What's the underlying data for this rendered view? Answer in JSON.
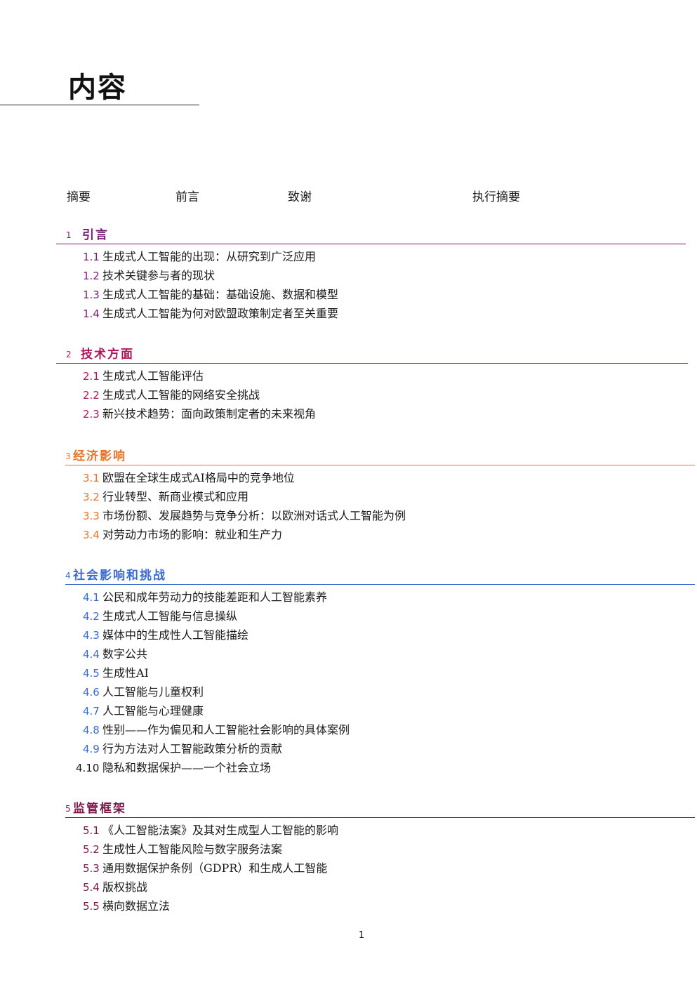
{
  "page": {
    "title": "内容",
    "page_number": "1"
  },
  "front_matter": [
    "摘要",
    "前言",
    "致谢",
    "执行摘要"
  ],
  "sections": [
    {
      "num": "1",
      "title": "引言",
      "color": "#7a1a73",
      "items": [
        {
          "num": "1.1",
          "text": "生成式人工智能的出现：从研究到广泛应用"
        },
        {
          "num": "1.2",
          "text": "技术关键参与者的现状"
        },
        {
          "num": "1.3",
          "text": "生成式人工智能的基础：基础设施、数据和模型"
        },
        {
          "num": "1.4",
          "text": "生成式人工智能为何对欧盟政策制定者至关重要"
        }
      ]
    },
    {
      "num": "2",
      "title": "技术方面",
      "color": "#b0155e",
      "items": [
        {
          "num": "2.1",
          "text": "生成式人工智能评估"
        },
        {
          "num": "2.2",
          "text": "生成式人工智能的网络安全挑战"
        },
        {
          "num": "2.3",
          "text": "新兴技术趋势：面向政策制定者的未来视角"
        }
      ]
    },
    {
      "num": "3",
      "title": "经济影响",
      "color": "#e8732a",
      "items": [
        {
          "num": "3.1",
          "text": "欧盟在全球生成式AI格局中的竞争地位"
        },
        {
          "num": "3.2",
          "text": "行业转型、新商业模式和应用"
        },
        {
          "num": "3.3",
          "text": "市场份额、发展趋势与竞争分析：以欧洲对话式人工智能为例"
        },
        {
          "num": "3.4",
          "text": "对劳动力市场的影响：就业和生产力"
        }
      ]
    },
    {
      "num": "4",
      "title": "社会影响和挑战",
      "color": "#3a6ccf",
      "items": [
        {
          "num": "4.1",
          "text": "公民和成年劳动力的技能差距和人工智能素养"
        },
        {
          "num": "4.2",
          "text": "生成式人工智能与信息操纵"
        },
        {
          "num": "4.3",
          "text": "媒体中的生成性人工智能描绘"
        },
        {
          "num": "4.4",
          "text": "数字公共"
        },
        {
          "num": "4.5",
          "text": "生成性AI"
        },
        {
          "num": "4.6",
          "text": "人工智能与儿童权利"
        },
        {
          "num": "4.7",
          "text": "人工智能与心理健康"
        },
        {
          "num": "4.8",
          "text": "性别——作为偏见和人工智能社会影响的具体案例"
        },
        {
          "num": "4.9",
          "text": "行为方法对人工智能政策分析的贡献"
        },
        {
          "num": "4.10",
          "text": "隐私和数据保护——一个社会立场",
          "num_color": "#1a1a1a"
        }
      ]
    },
    {
      "num": "5",
      "title": "监管框架",
      "color": "#7a1a4a",
      "items": [
        {
          "num": "5.1",
          "text": "《人工智能法案》及其对生成型人工智能的影响"
        },
        {
          "num": "5.2",
          "text": "生成性人工智能风险与数字服务法案"
        },
        {
          "num": "5.3",
          "text": "通用数据保护条例（GDPR）和生成人工智能"
        },
        {
          "num": "5.4",
          "text": "版权挑战"
        },
        {
          "num": "5.5",
          "text": "横向数据立法"
        }
      ]
    }
  ]
}
